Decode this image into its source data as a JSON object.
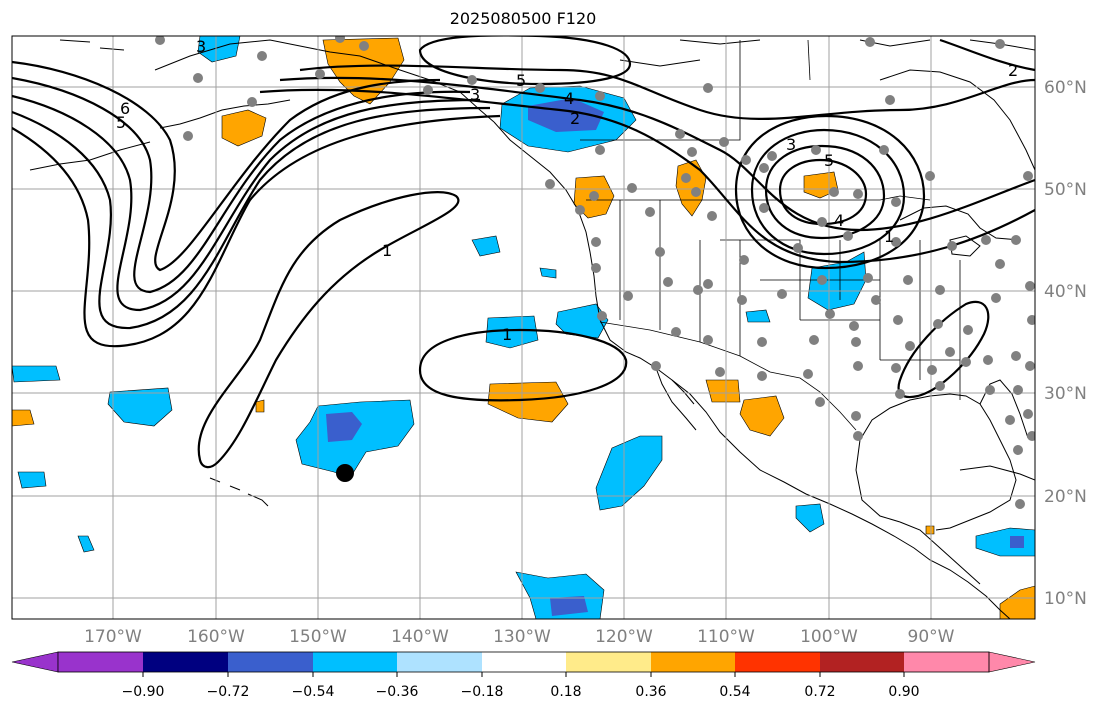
{
  "title": "2025080500 F120",
  "lon_labels": [
    "170°W",
    "160°W",
    "150°W",
    "140°W",
    "130°W",
    "120°W",
    "110°W",
    "100°W",
    "90°W"
  ],
  "lat_labels": [
    "60°N",
    "50°N",
    "40°N",
    "30°N",
    "20°N",
    "10°N"
  ],
  "colorbar": {
    "colors": [
      "#9933cc",
      "#000080",
      "#3a5fcd",
      "#00bfff",
      "#aee2ff",
      "#ffffff",
      "#ffeb8a",
      "#ffa500",
      "#ff3300",
      "#b22222",
      "#ff88aa"
    ],
    "tick_labels": [
      "−0.90",
      "−0.72",
      "−0.54",
      "−0.36",
      "−0.18",
      "0.18",
      "0.36",
      "0.54",
      "0.72",
      "0.90"
    ]
  },
  "contour_labels": {
    "c_3_topleft": "3",
    "c_6_west": "6",
    "c_5_west": "5",
    "c_5_north": "5",
    "c_4_gulf": "4",
    "c_2_gulf": "2",
    "c_3_low": "3",
    "c_3_upper": "3",
    "c_4_low": "4",
    "c_1_low": "1",
    "c_1_pac": "1",
    "c_1_mid": "1",
    "c_2_ne": "2",
    "c_5_top": "5"
  },
  "colors": {
    "land_line": "#000000",
    "contour": "#000000",
    "grid": "#a0a0a0",
    "station_dot": "#808080",
    "orange": "#ffa500",
    "light_blue": "#00bfff",
    "mid_blue": "#3a5fcd"
  }
}
